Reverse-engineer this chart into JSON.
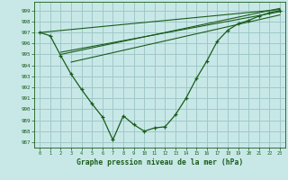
{
  "title": "Graphe pression niveau de la mer (hPa)",
  "bg_color": "#c8e8e8",
  "grid_color": "#a0c8c8",
  "line_color": "#1a5c1a",
  "ylim": [
    986.5,
    999.8
  ],
  "xlim": [
    -0.5,
    23.5
  ],
  "yticks": [
    987,
    988,
    989,
    990,
    991,
    992,
    993,
    994,
    995,
    996,
    997,
    998,
    999
  ],
  "xticks": [
    0,
    1,
    2,
    3,
    4,
    5,
    6,
    7,
    8,
    9,
    10,
    11,
    12,
    13,
    14,
    15,
    16,
    17,
    18,
    19,
    20,
    21,
    22,
    23
  ],
  "main_x": [
    0,
    1,
    2,
    3,
    4,
    5,
    6,
    7,
    8,
    9,
    10,
    11,
    12,
    13,
    14,
    15,
    16,
    17,
    18,
    19,
    20,
    21,
    22,
    23
  ],
  "main_y": [
    997.0,
    996.7,
    994.9,
    993.2,
    991.8,
    990.5,
    989.3,
    987.2,
    989.4,
    988.6,
    988.0,
    988.3,
    988.4,
    989.5,
    991.0,
    992.8,
    994.4,
    996.2,
    997.2,
    997.8,
    998.1,
    998.5,
    998.8,
    999.0
  ],
  "trend1_x": [
    0,
    23
  ],
  "trend1_y": [
    997.0,
    999.1
  ],
  "trend2_x": [
    2,
    23
  ],
  "trend2_y": [
    995.2,
    998.9
  ],
  "trend3_x": [
    2,
    23
  ],
  "trend3_y": [
    995.0,
    999.2
  ],
  "trend4_x": [
    3,
    23
  ],
  "trend4_y": [
    994.3,
    998.6
  ]
}
